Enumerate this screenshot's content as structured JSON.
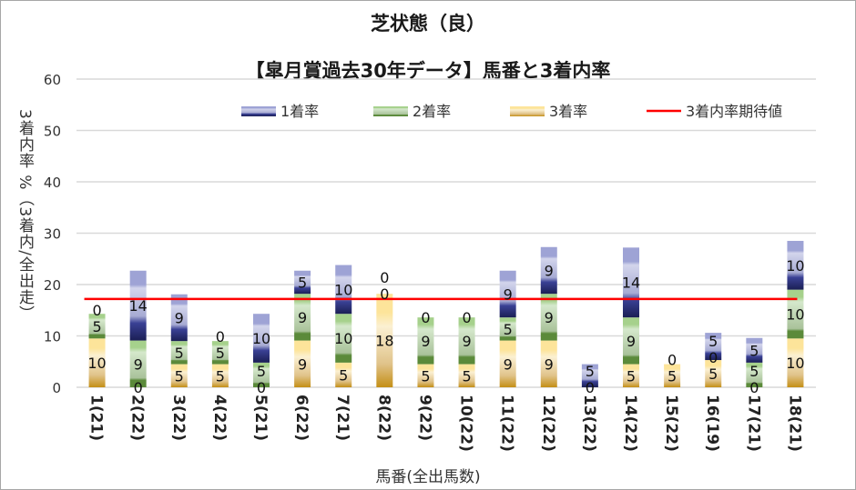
{
  "chart_data": {
    "type": "bar",
    "stacked": true,
    "title": "芝状態（良）",
    "subtitle": "【皐月賞過去30年データ】馬番と3着内率",
    "xlabel": "馬番(全出馬数)",
    "ylabel": "3着内率 %（3着内/全出走）",
    "ylim": [
      0,
      60
    ],
    "yticks": [
      "0",
      "10",
      "20",
      "30",
      "40",
      "50",
      "60"
    ],
    "grid": true,
    "legend_position": "top",
    "categories": [
      "1(21)",
      "2(22)",
      "3(22)",
      "4(22)",
      "5(21)",
      "6(22)",
      "7(21)",
      "8(22)",
      "9(22)",
      "10(22)",
      "11(22)",
      "12(22)",
      "13(22)",
      "14(22)",
      "15(22)",
      "16(19)",
      "17(21)",
      "18(21)"
    ],
    "series": [
      {
        "name": "3着率",
        "color": "#c9961c",
        "values": [
          9.5,
          0,
          4.5,
          4.5,
          0,
          9.1,
          4.8,
          18.2,
          4.5,
          4.5,
          9.1,
          9.1,
          0,
          4.5,
          4.5,
          5.3,
          0,
          9.5
        ],
        "labels": [
          "10",
          "0",
          "5",
          "5",
          "0",
          "9",
          "5",
          "18",
          "5",
          "5",
          "9",
          "9",
          "0",
          "5",
          "5",
          "5",
          "0",
          "10"
        ]
      },
      {
        "name": "2着率",
        "color": "#5b8a3a",
        "values": [
          4.8,
          9.1,
          4.5,
          4.5,
          4.8,
          9.1,
          9.5,
          0,
          9.1,
          9.1,
          4.5,
          9.1,
          0,
          9.1,
          0,
          0,
          4.8,
          9.5
        ],
        "labels": [
          "5",
          "9",
          "5",
          "5",
          "5",
          "9",
          "10",
          "0",
          "9",
          "9",
          "5",
          "9",
          "",
          "9",
          "",
          "0",
          "5",
          "10"
        ]
      },
      {
        "name": "1着率",
        "color": "#2b3178",
        "values": [
          0,
          13.6,
          9.1,
          0,
          9.5,
          4.5,
          9.5,
          0,
          0,
          0,
          9.1,
          9.1,
          4.5,
          13.6,
          0,
          5.3,
          4.8,
          9.5
        ],
        "labels": [
          "0",
          "14",
          "9",
          "0",
          "10",
          "5",
          "10",
          "0",
          "0",
          "0",
          "9",
          "9",
          "5",
          "14",
          "0",
          "5",
          "5",
          "10"
        ]
      }
    ],
    "reference_line": {
      "name": "3着内率期待値",
      "color": "#ff0000",
      "value": 17.2
    }
  }
}
